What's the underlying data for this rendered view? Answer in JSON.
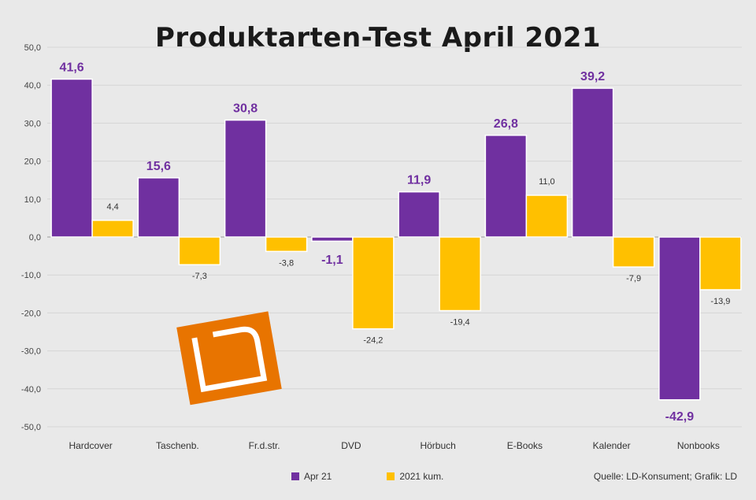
{
  "chart_data": {
    "type": "bar",
    "title": "Produktarten-Test April 2021",
    "categories": [
      "Hardcover",
      "Taschenb.",
      "Fr.d.str.",
      "DVD",
      "Hörbuch",
      "E-Books",
      "Kalender",
      "Nonbooks"
    ],
    "series": [
      {
        "name": "Apr 21",
        "color": "#7030a0",
        "values": [
          41.6,
          15.6,
          30.8,
          -1.1,
          11.9,
          26.8,
          39.2,
          -42.9
        ]
      },
      {
        "name": "2021 kum.",
        "color": "#ffc000",
        "values": [
          4.4,
          -7.3,
          -3.8,
          -24.2,
          -19.4,
          11.0,
          -7.9,
          -13.9
        ]
      }
    ],
    "data_labels": [
      [
        "41,6",
        "15,6",
        "30,8",
        "-1,1",
        "11,9",
        "26,8",
        "39,2",
        "-42,9"
      ],
      [
        "4,4",
        "-7,3",
        "-3,8",
        "-24,2",
        "-19,4",
        "11,0",
        "-7,9",
        "-13,9"
      ]
    ],
    "y_ticks": [
      "50,0",
      "40,0",
      "30,0",
      "20,0",
      "10,0",
      "0,0",
      "-10,0",
      "-20,0",
      "-30,0",
      "-40,0",
      "-50,0"
    ],
    "ylim": [
      -50,
      50
    ],
    "grid": true,
    "legend": "bottom",
    "source": "Quelle: LD-Konsument; Grafik: LD",
    "logo": "LD",
    "logo_color": "#e87400"
  }
}
